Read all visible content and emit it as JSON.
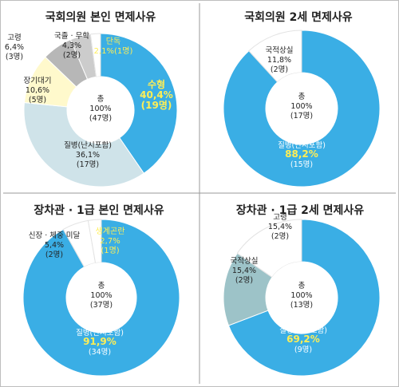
{
  "colors": {
    "border": "#bdbdbd",
    "divider": "#9a9a9a",
    "blue": "#3aaee5",
    "light_teal": "#cfe3e9",
    "cream": "#fff9cc",
    "gray": "#b7b7b7",
    "light_gray": "#cccccc",
    "gray_teal": "#9dc3c8",
    "white": "#ffffff",
    "highlight": "#ffee55"
  },
  "chart_data": [
    {
      "type": "pie",
      "title": "국회의원 본인 면제사유",
      "center": [
        "총",
        "100%",
        "(47명)"
      ],
      "slices": [
        {
          "name": "수형",
          "value": 40.4,
          "count": "(19명)",
          "lines": [
            "수형",
            "40,4%",
            "(19명)"
          ],
          "color": "#3aaee5",
          "style": "yellow-big"
        },
        {
          "name": "질병(난시포함)",
          "value": 36.1,
          "count": "(17명)",
          "lines": [
            "질병(난시포함)",
            "36,1%",
            "(17명)"
          ],
          "color": "#cfe3e9",
          "style": "dark"
        },
        {
          "name": "장기대기",
          "value": 10.6,
          "count": "(5명)",
          "lines": [
            "장기대기",
            "10,6%",
            "(5명)"
          ],
          "color": "#fff9cc",
          "style": "dark"
        },
        {
          "name": "고령",
          "value": 6.4,
          "count": "(3명)",
          "lines": [
            "고령",
            "6,4%",
            "(3명)"
          ],
          "color": "#b7b7b7",
          "style": "dark"
        },
        {
          "name": "국졸 · 무학",
          "value": 4.3,
          "count": "(2명)",
          "lines": [
            "국졸 · 무학",
            "4,3%",
            "(2명)"
          ],
          "color": "#cccccc",
          "style": "dark"
        },
        {
          "name": "단독",
          "value": 2.1,
          "count": "(1명)",
          "lines": [
            "단독",
            "2,1%(1명)"
          ],
          "color": "#ffffff",
          "style": "yellow-small"
        }
      ]
    },
    {
      "type": "pie",
      "title": "국회의원 2세 면제사유",
      "center": [
        "총",
        "100%",
        "(17명)"
      ],
      "slices": [
        {
          "name": "질병(난시포함)",
          "value": 88.2,
          "count": "(15명)",
          "lines": [
            "질병(난시포함)",
            "88,2%",
            "(15명)"
          ],
          "color": "#3aaee5",
          "style": "mixed"
        },
        {
          "name": "국적상실",
          "value": 11.8,
          "count": "(2명)",
          "lines": [
            "국적상실",
            "11,8%",
            "(2명)"
          ],
          "color": "#ffffff",
          "style": "dark"
        }
      ]
    },
    {
      "type": "pie",
      "title": "장차관 · 1급 본인 면제사유",
      "center": [
        "총",
        "100%",
        "(37명)"
      ],
      "slices": [
        {
          "name": "질병(난시포함)",
          "value": 91.9,
          "count": "(34명)",
          "lines": [
            "질병(난시포함)",
            "91,9%",
            "(34명)"
          ],
          "color": "#3aaee5",
          "style": "mixed"
        },
        {
          "name": "신장 · 체중 미달",
          "value": 5.4,
          "count": "(2명)",
          "lines": [
            "신장 · 체중 미달",
            "5,4%",
            "(2명)"
          ],
          "color": "#ffffff",
          "style": "dark"
        },
        {
          "name": "생계곤란",
          "value": 2.7,
          "count": "(1명)",
          "lines": [
            "생계곤란",
            "2,7%",
            "(1명)"
          ],
          "color": "#ffffff",
          "style": "yellow-small"
        }
      ]
    },
    {
      "type": "pie",
      "title": "장차관 · 1급 2세 면제사유",
      "center": [
        "총",
        "100%",
        "(13명)"
      ],
      "slices": [
        {
          "name": "질병(근시포함)",
          "value": 69.2,
          "count": "(9명)",
          "lines": [
            "질병(근시포함)",
            "69,2%",
            "(9명)"
          ],
          "color": "#3aaee5",
          "style": "mixed"
        },
        {
          "name": "국적상실",
          "value": 15.4,
          "count": "(2명)",
          "lines": [
            "국적상실",
            "15,4%",
            "(2명)"
          ],
          "color": "#9dc3c8",
          "style": "dark"
        },
        {
          "name": "고령",
          "value": 15.4,
          "count": "(2명)",
          "lines": [
            "고령",
            "15,4%",
            "(2명)"
          ],
          "color": "#ffffff",
          "style": "dark"
        }
      ]
    }
  ]
}
